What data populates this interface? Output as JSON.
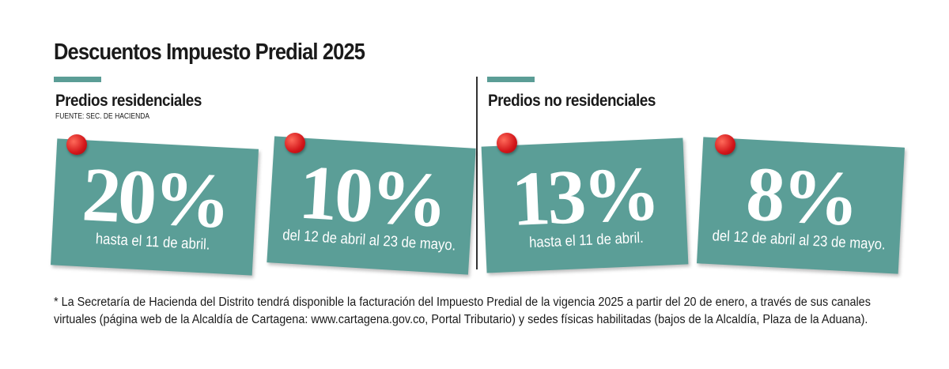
{
  "header": {
    "title": "Descuentos Impuesto Predial 2025"
  },
  "sections": [
    {
      "heading": "Predios residenciales",
      "source": "FUENTE: SEC. DE HACIENDA",
      "cards": [
        {
          "discount": "20%",
          "period": "hasta el 11 de abril."
        },
        {
          "discount": "10%",
          "period": "del 12 de abril  al 23 de mayo."
        }
      ]
    },
    {
      "heading": "Predios no residenciales",
      "cards": [
        {
          "discount": "13%",
          "period": "hasta el 11 de abril."
        },
        {
          "discount": "8%",
          "period": "del 12 de abril  al 23 de mayo."
        }
      ]
    }
  ],
  "footnote": {
    "lines": [
      "* La Secretaría de Hacienda del Distrito tendrá disponible la facturación del Impuesto Predial de la  vigencia 2025 a partir del 20 de enero, a través de sus canales",
      "virtuales (página web de la Alcaldía de Cartagena: www.cartagena.gov.co, Portal Tributario)  y sedes físicas habilitadas (bajos de la Alcaldía, Plaza de la Aduana)."
    ]
  }
}
